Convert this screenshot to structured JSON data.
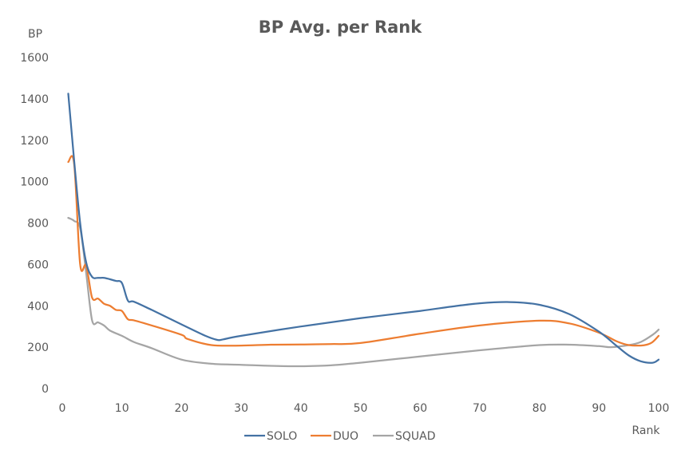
{
  "chart_data": {
    "type": "line",
    "title": "BP Avg. per Rank",
    "xlabel": "Rank",
    "ylabel": "BP",
    "xlim": [
      0,
      100
    ],
    "ylim": [
      0,
      1600
    ],
    "xticks": [
      "0",
      "10",
      "20",
      "30",
      "40",
      "50",
      "60",
      "70",
      "80",
      "90",
      "100"
    ],
    "yticks": [
      "0",
      "200",
      "400",
      "600",
      "800",
      "1000",
      "1200",
      "1400",
      "1600"
    ],
    "grid": false,
    "legend_position": "bottom",
    "series": [
      {
        "name": "SOLO",
        "color": "#4472A4",
        "points": [
          [
            1,
            1425
          ],
          [
            2,
            1100
          ],
          [
            3,
            800
          ],
          [
            4,
            610
          ],
          [
            5,
            540
          ],
          [
            6,
            535
          ],
          [
            7,
            535
          ],
          [
            8,
            528
          ],
          [
            9,
            520
          ],
          [
            10,
            510
          ],
          [
            11,
            425
          ],
          [
            12,
            420
          ],
          [
            15,
            380
          ],
          [
            20,
            310
          ],
          [
            24,
            255
          ],
          [
            26,
            235
          ],
          [
            27,
            238
          ],
          [
            30,
            255
          ],
          [
            40,
            300
          ],
          [
            50,
            340
          ],
          [
            60,
            375
          ],
          [
            65,
            395
          ],
          [
            70,
            412
          ],
          [
            75,
            418
          ],
          [
            80,
            405
          ],
          [
            85,
            360
          ],
          [
            90,
            275
          ],
          [
            93,
            205
          ],
          [
            95,
            160
          ],
          [
            97,
            132
          ],
          [
            99,
            125
          ],
          [
            100,
            140
          ]
        ]
      },
      {
        "name": "DUO",
        "color": "#ED7D31",
        "points": [
          [
            1,
            1095
          ],
          [
            2,
            1085
          ],
          [
            3,
            600
          ],
          [
            4,
            595
          ],
          [
            5,
            440
          ],
          [
            6,
            435
          ],
          [
            7,
            410
          ],
          [
            8,
            400
          ],
          [
            9,
            380
          ],
          [
            10,
            375
          ],
          [
            11,
            335
          ],
          [
            12,
            330
          ],
          [
            15,
            305
          ],
          [
            20,
            260
          ],
          [
            21,
            240
          ],
          [
            25,
            210
          ],
          [
            30,
            208
          ],
          [
            35,
            212
          ],
          [
            40,
            213
          ],
          [
            45,
            215
          ],
          [
            50,
            220
          ],
          [
            60,
            265
          ],
          [
            70,
            305
          ],
          [
            80,
            328
          ],
          [
            85,
            315
          ],
          [
            90,
            270
          ],
          [
            93,
            228
          ],
          [
            95,
            210
          ],
          [
            97,
            208
          ],
          [
            98,
            212
          ],
          [
            99,
            225
          ],
          [
            100,
            255
          ]
        ]
      },
      {
        "name": "SQUAD",
        "color": "#A5A5A5",
        "points": [
          [
            1,
            825
          ],
          [
            2,
            810
          ],
          [
            3,
            775
          ],
          [
            4,
            560
          ],
          [
            5,
            330
          ],
          [
            6,
            320
          ],
          [
            7,
            305
          ],
          [
            8,
            280
          ],
          [
            10,
            255
          ],
          [
            12,
            225
          ],
          [
            15,
            195
          ],
          [
            20,
            140
          ],
          [
            25,
            120
          ],
          [
            30,
            115
          ],
          [
            35,
            110
          ],
          [
            40,
            108
          ],
          [
            45,
            112
          ],
          [
            50,
            125
          ],
          [
            60,
            155
          ],
          [
            70,
            185
          ],
          [
            80,
            210
          ],
          [
            85,
            212
          ],
          [
            90,
            205
          ],
          [
            92,
            200
          ],
          [
            95,
            210
          ],
          [
            97,
            225
          ],
          [
            99,
            260
          ],
          [
            100,
            285
          ]
        ]
      }
    ]
  }
}
